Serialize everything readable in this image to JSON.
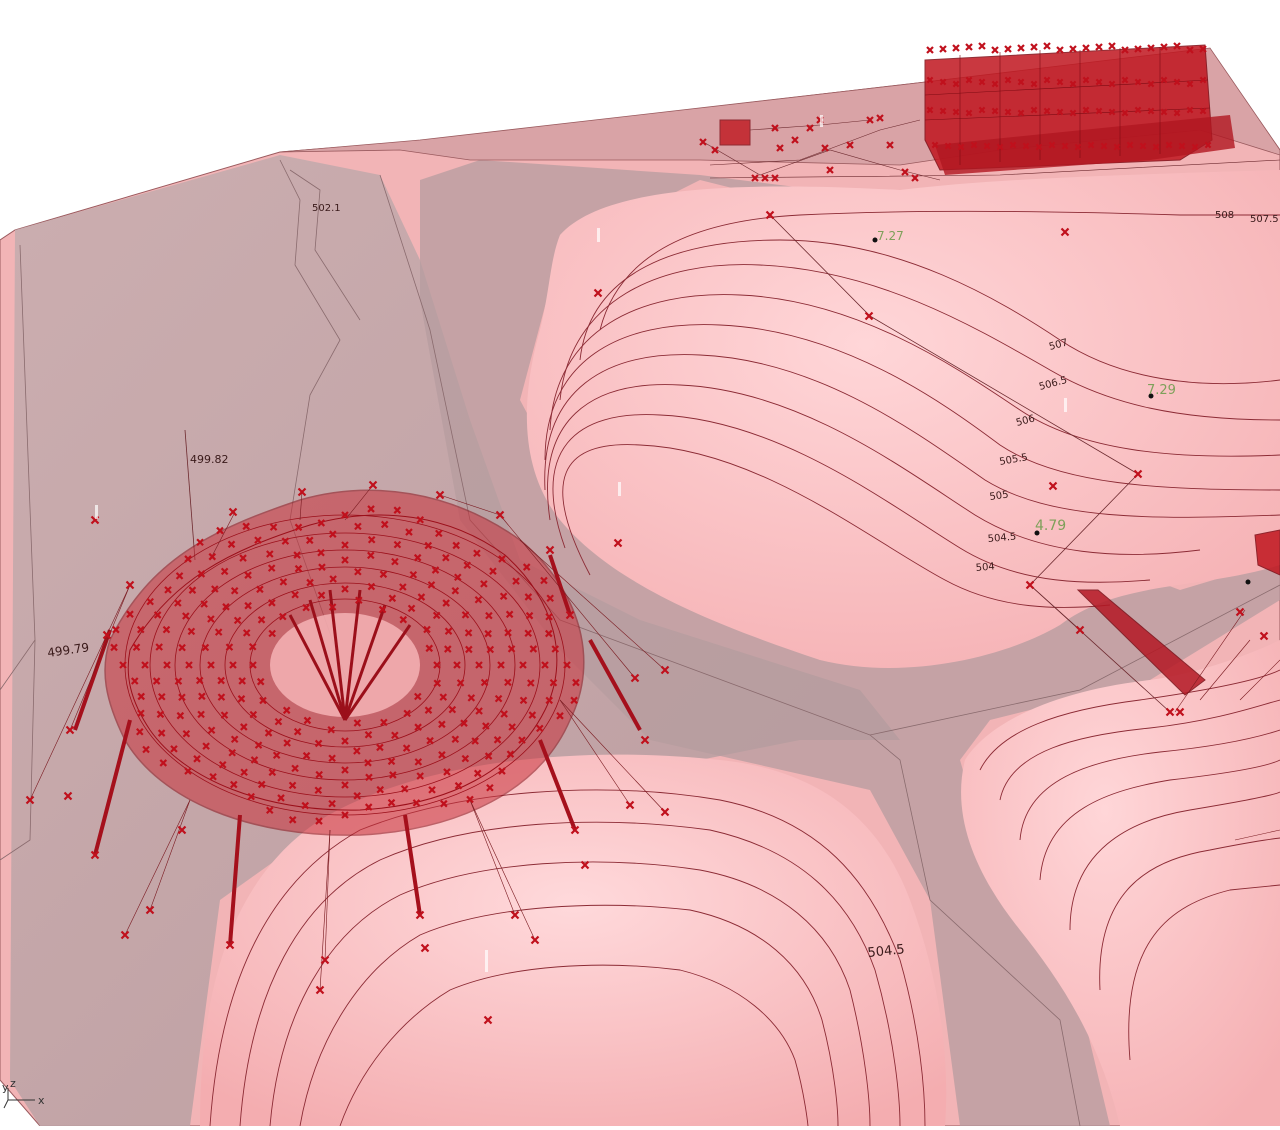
{
  "viewport": {
    "colors": {
      "terrain_fill": "#f4b3b5",
      "terrain_highlight": "#ffd0d2",
      "slope_grey": "#b6a2a4",
      "plinth_grey": "#c9b0b2",
      "contour_stroke": "#8c2b35",
      "structure_red": "#b30f1c",
      "marker_red": "#c0101c",
      "height_label_green": "#7ea05a"
    },
    "contour_labels": [
      "502.1",
      "499.82",
      "499.79",
      "508",
      "507.5",
      "507",
      "506.5",
      "506",
      "505.5",
      "505",
      "504.5",
      "504",
      "504.5"
    ],
    "height_labels": [
      "7.27",
      "7.29",
      "4.79"
    ],
    "axis": {
      "y": "y",
      "z": "z",
      "x": "x"
    }
  }
}
